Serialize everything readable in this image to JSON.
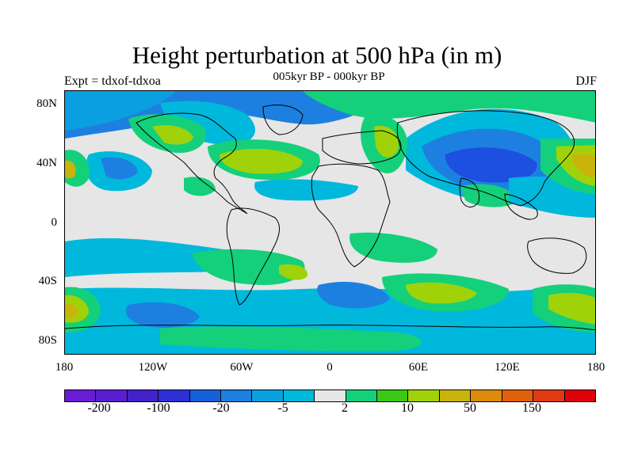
{
  "title": "Height perturbation at 500 hPa (in m)",
  "subtitle": "005kyr BP - 000kyr BP",
  "experiment": "Expt = tdxof-tdxoa",
  "season": "DJF",
  "y_ticks": [
    "80N",
    "40N",
    "0",
    "40S",
    "80S"
  ],
  "x_ticks": [
    "180",
    "120W",
    "60W",
    "0",
    "60E",
    "120E",
    "180"
  ],
  "colorbar": {
    "colors": [
      "#6a1bd6",
      "#5a1ed0",
      "#4322cc",
      "#2d30d6",
      "#1560d8",
      "#1d80e0",
      "#0aa0e0",
      "#00b8dc",
      "#e6e6e6",
      "#14d07a",
      "#3cc814",
      "#a0d20a",
      "#c8b40a",
      "#dc8c0a",
      "#e0600a",
      "#e03a14",
      "#e0000a"
    ],
    "labels": [
      "-200",
      "-100",
      "-20",
      "-5",
      "2",
      "10",
      "50",
      "150"
    ]
  },
  "colors": {
    "background": "#e6e6e6",
    "strong_negative": "#1d4fe0",
    "negative": "#1d80e0",
    "weak_negative": "#0aa0e0",
    "light_negative": "#00b8dc",
    "weak_positive": "#14d07a",
    "positive": "#3cc814",
    "strong_positive": "#a0d20a",
    "very_strong_positive": "#c8b40a",
    "coastline": "#000000"
  }
}
